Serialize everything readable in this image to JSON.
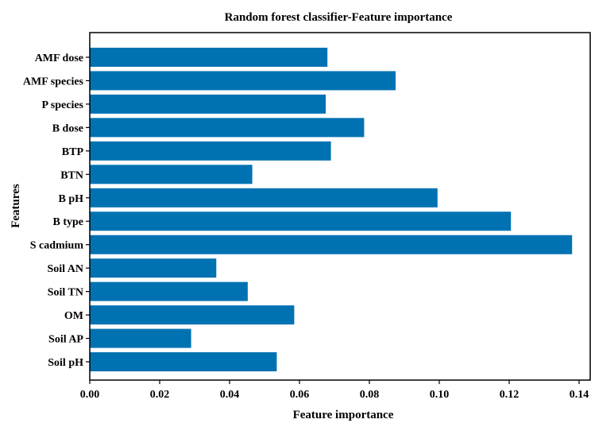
{
  "chart_data": {
    "type": "bar",
    "orientation": "horizontal",
    "title": "Random forest classifier-Feature importance",
    "xlabel": "Feature importance",
    "ylabel": "Features",
    "xlim": [
      0.0,
      0.14
    ],
    "xticks": [
      "0.00",
      "0.02",
      "0.04",
      "0.06",
      "0.08",
      "0.10",
      "0.12",
      "0.14"
    ],
    "grid": false,
    "bar_color": "#0072B2",
    "categories": [
      "AMF dose",
      "AMF species",
      "P species",
      "B dose",
      "BTP",
      "BTN",
      "B pH",
      "B type",
      "S cadmium",
      "Soil AN",
      "Soil TN",
      "OM",
      "Soil AP",
      "Soil pH"
    ],
    "values": [
      0.068,
      0.0875,
      0.0675,
      0.0785,
      0.069,
      0.0465,
      0.0995,
      0.1205,
      0.138,
      0.0362,
      0.0452,
      0.0585,
      0.029,
      0.0535
    ]
  }
}
